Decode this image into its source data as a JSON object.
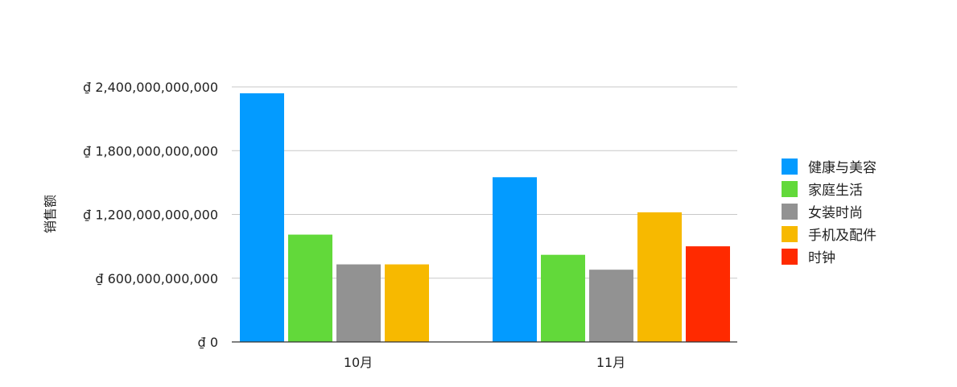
{
  "chart_data": {
    "type": "bar",
    "title": "",
    "xlabel": "",
    "ylabel": "销售额",
    "categories": [
      "10月",
      "11月"
    ],
    "ylim": [
      0,
      2400000000000
    ],
    "yticks": [
      {
        "value": 0,
        "label": "₫ 0"
      },
      {
        "value": 600000000000,
        "label": "₫ 600,000,000,000"
      },
      {
        "value": 1200000000000,
        "label": "₫ 1,200,000,000,000"
      },
      {
        "value": 1800000000000,
        "label": "₫ 1,800,000,000,000"
      },
      {
        "value": 2400000000000,
        "label": "₫ 2,400,000,000,000"
      }
    ],
    "grid": true,
    "legend_position": "right",
    "series": [
      {
        "name": "健康与美容",
        "color": "#039BFF",
        "values": [
          2340000000000,
          1550000000000
        ]
      },
      {
        "name": "家庭生活",
        "color": "#62D93A",
        "values": [
          1010000000000,
          820000000000
        ]
      },
      {
        "name": "女装时尚",
        "color": "#929292",
        "values": [
          730000000000,
          680000000000
        ]
      },
      {
        "name": "手机及配件",
        "color": "#F7B900",
        "values": [
          730000000000,
          1220000000000
        ]
      },
      {
        "name": "时钟",
        "color": "#FF2A00",
        "values": [
          null,
          900000000000
        ]
      }
    ]
  }
}
